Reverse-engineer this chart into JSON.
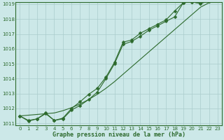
{
  "hours": [
    0,
    1,
    2,
    3,
    4,
    5,
    6,
    7,
    8,
    9,
    10,
    11,
    12,
    13,
    14,
    15,
    16,
    17,
    18,
    19,
    20,
    21,
    22,
    23
  ],
  "pressure_line1": [
    1011.5,
    1011.2,
    1011.3,
    1011.7,
    1011.2,
    1011.3,
    1011.9,
    1012.2,
    1012.6,
    1013.1,
    1014.0,
    1015.0,
    1016.3,
    1016.5,
    1016.85,
    1017.25,
    1017.55,
    1017.85,
    1018.15,
    1019.1,
    1019.15,
    1019.05,
    1019.2,
    1019.35
  ],
  "pressure_line2": [
    1011.5,
    1011.15,
    1011.3,
    1011.65,
    1011.2,
    1011.35,
    1012.0,
    1012.45,
    1012.95,
    1013.35,
    1014.1,
    1015.1,
    1016.45,
    1016.6,
    1017.05,
    1017.35,
    1017.65,
    1017.95,
    1018.55,
    1019.1,
    1019.15,
    1019.05,
    1019.25,
    1019.38
  ],
  "pressure_smooth": [
    1011.5,
    1011.55,
    1011.6,
    1011.65,
    1011.7,
    1011.85,
    1012.05,
    1012.3,
    1012.6,
    1012.95,
    1013.35,
    1013.8,
    1014.3,
    1014.8,
    1015.3,
    1015.8,
    1016.3,
    1016.8,
    1017.3,
    1017.8,
    1018.3,
    1018.8,
    1019.1,
    1019.38
  ],
  "ylim_min": 1011,
  "ylim_max": 1019,
  "yticks": [
    1011,
    1012,
    1013,
    1014,
    1015,
    1016,
    1017,
    1018,
    1019
  ],
  "xticks": [
    0,
    1,
    2,
    3,
    4,
    5,
    6,
    7,
    8,
    9,
    10,
    11,
    12,
    13,
    14,
    15,
    16,
    17,
    18,
    19,
    20,
    21,
    22,
    23
  ],
  "line_color": "#2d6a2d",
  "bg_color": "#cce8e8",
  "grid_color": "#aacccc",
  "xlabel": "Graphe pression niveau de la mer (hPa)",
  "marker": "D",
  "marker_size": 2.5,
  "linewidth": 0.8
}
